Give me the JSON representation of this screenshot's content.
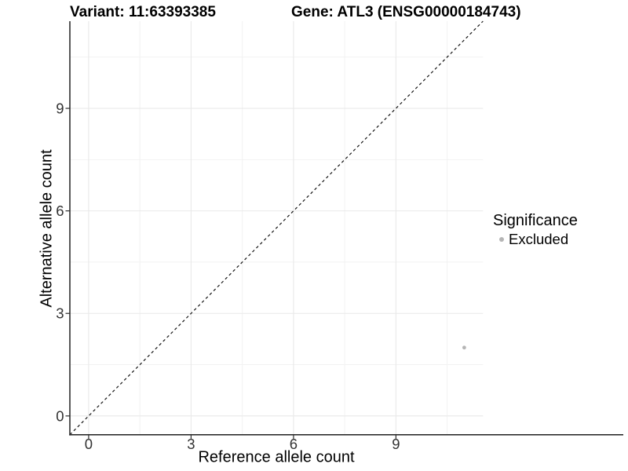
{
  "figure": {
    "variant_title": "Variant: 11:63393385",
    "gene_title": "Gene: ATL3 (ENSG00000184743)"
  },
  "legend": {
    "title": "Significance",
    "items": [
      {
        "label": "Excluded",
        "color": "#b5b5b5"
      }
    ]
  },
  "colors": {
    "background": "#ffffff",
    "axis_line": "#2e2e2e",
    "tick_label": "#333333",
    "grid_major": "#e9e9e9",
    "grid_minor": "#f2f2f2",
    "reference_line": "#141414",
    "point": "#b5b5b5"
  },
  "chart_data": {
    "type": "scatter",
    "title": "Variant: 11:63393385  |  Gene: ATL3 (ENSG00000184743)",
    "xlabel": "Reference allele count",
    "ylabel": "Alternative allele count",
    "xlim": [
      -0.55,
      11.55
    ],
    "ylim": [
      -0.55,
      11.55
    ],
    "x_ticks": [
      0,
      3,
      6,
      9
    ],
    "y_ticks": [
      0,
      3,
      6,
      9
    ],
    "x_minor_ticks": [
      1.5,
      4.5,
      7.5,
      10.5
    ],
    "y_minor_ticks": [
      1.5,
      4.5,
      7.5,
      10.5
    ],
    "grid": true,
    "legend_position": "right",
    "series": [
      {
        "name": "Excluded",
        "color": "#b5b5b5",
        "points": [
          {
            "x": 11,
            "y": 2
          }
        ]
      }
    ],
    "reference_line": {
      "type": "identity",
      "slope": 1,
      "intercept": 0,
      "style": "dashed",
      "color": "#141414"
    }
  }
}
